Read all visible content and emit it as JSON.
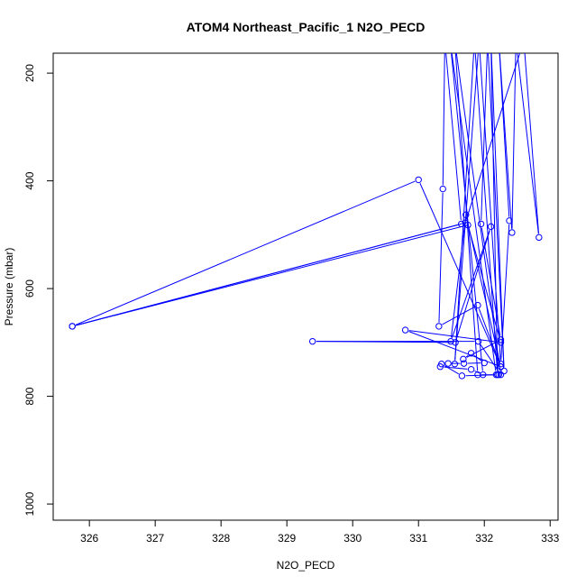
{
  "chart_data": {
    "type": "line",
    "title": "ATOM4 Northeast_Pacific_1 N2O_PECD",
    "xlabel": "N2O_PECD",
    "ylabel": "Pressure (mbar)",
    "xlim": [
      325.45,
      333.12
    ],
    "ylim": [
      1030,
      163
    ],
    "y_reversed": true,
    "x_ticks": [
      326,
      327,
      328,
      329,
      330,
      331,
      332,
      333
    ],
    "y_ticks": [
      200,
      400,
      600,
      800,
      1000
    ],
    "grid": false,
    "series_color": "#0000ff",
    "series": [
      {
        "points": [
          [
            332.22,
            760
          ],
          [
            331.66,
            762
          ],
          [
            331.35,
            740
          ],
          [
            331.45,
            739
          ],
          [
            331.69,
            739
          ],
          [
            332.0,
            738
          ],
          [
            331.8,
            720
          ],
          [
            331.68,
            731
          ],
          [
            332.25,
            695
          ],
          [
            331.95,
            480
          ],
          [
            332.05,
            140
          ],
          [
            332.3,
            753
          ],
          [
            332.1,
            140
          ],
          [
            332.2,
            760
          ],
          [
            331.85,
            140
          ],
          [
            331.55,
            740
          ],
          [
            331.92,
            140
          ],
          [
            332.25,
            740
          ],
          [
            332.38,
            474
          ],
          [
            332.22,
            140
          ],
          [
            332.42,
            496
          ],
          [
            332.48,
            140
          ],
          [
            332.83,
            505
          ],
          [
            332.6,
            140
          ],
          [
            331.71,
            478
          ],
          [
            325.74,
            670
          ],
          [
            331.65,
            480
          ],
          [
            331.4,
            140
          ],
          [
            331.37,
            415
          ],
          [
            331.31,
            670
          ],
          [
            331.9,
            631
          ],
          [
            332.25,
            745
          ],
          [
            331.0,
            398
          ],
          [
            325.74,
            670
          ],
          [
            331.75,
            482
          ],
          [
            332.25,
            700
          ],
          [
            330.8,
            677
          ],
          [
            332.25,
            745
          ],
          [
            331.72,
            463
          ],
          [
            331.49,
            698
          ],
          [
            332.1,
            485
          ],
          [
            331.56,
            700
          ],
          [
            329.39,
            698
          ],
          [
            331.91,
            698
          ],
          [
            332.25,
            760
          ],
          [
            331.55,
            140
          ],
          [
            331.9,
            760
          ],
          [
            332.18,
            760
          ],
          [
            331.48,
            140
          ],
          [
            331.98,
            760
          ],
          [
            331.8,
            750
          ],
          [
            331.33,
            745
          ]
        ]
      }
    ]
  }
}
